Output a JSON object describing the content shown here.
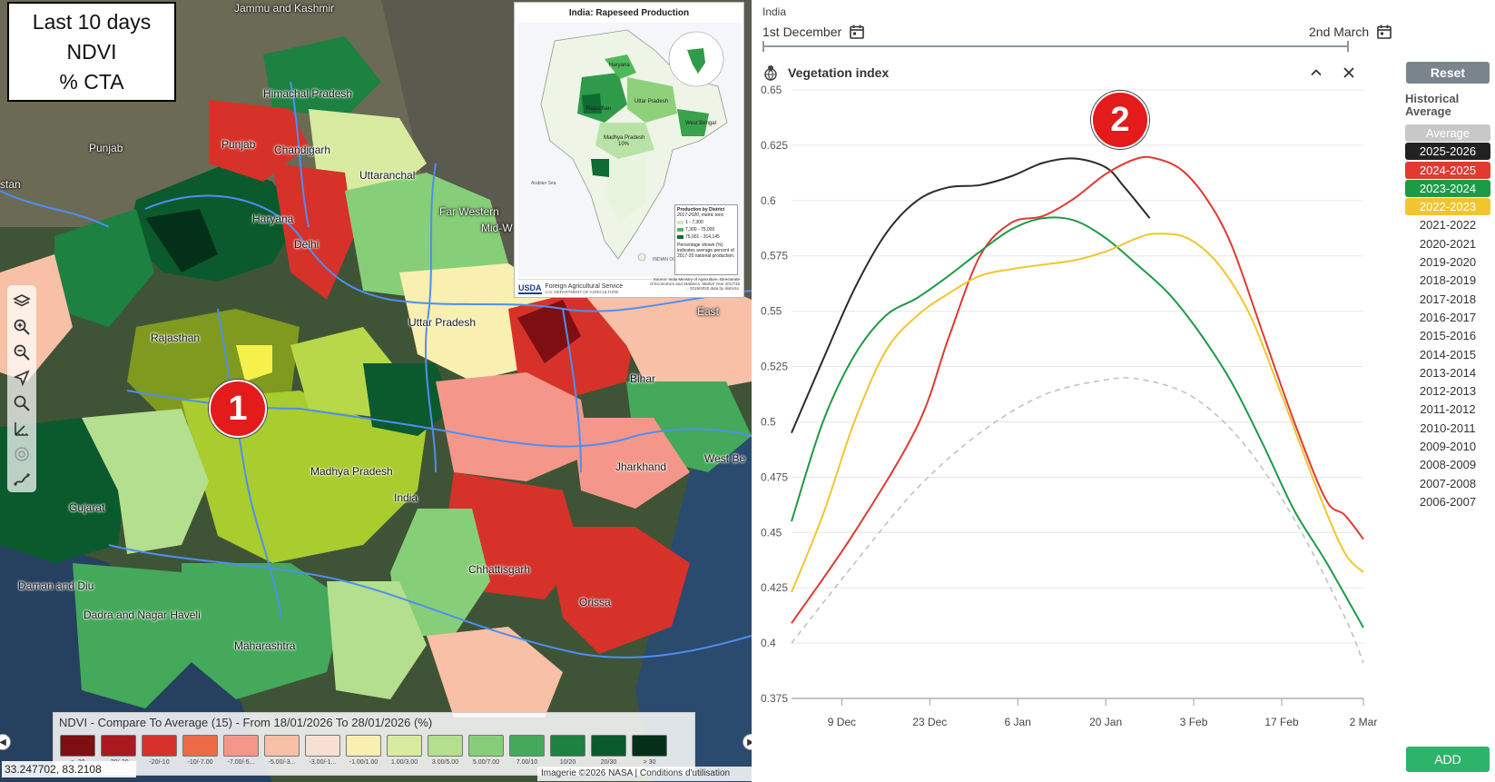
{
  "map": {
    "info_box": {
      "line1": "Last 10 days",
      "line2": "NDVI",
      "line3": "% CTA"
    },
    "labels": {
      "jammu": "Jammu and Kashmir",
      "himachal": "Himachal Pradesh",
      "punjab_region": "Punjab",
      "punjab_state": "Punjab",
      "chandigarh": "Chandigarh",
      "uttaranchal": "Uttaranchal",
      "haryana": "Haryana",
      "delhi": "Delhi",
      "far_western": "Far Western",
      "mid_w": "Mid-W",
      "rajasthan": "Rajasthan",
      "uttar_pradesh": "Uttar Pradesh",
      "east": "East",
      "bihar": "Bihar",
      "madhya_pradesh": "Madhya Pradesh",
      "india": "India",
      "jharkhand": "Jharkhand",
      "west_bengal": "West Be",
      "gujarat": "Gujarat",
      "chhattisgarh": "Chhattisgarh",
      "daman_diu": "Daman and Diu",
      "dadra": "Dadra and Nagar Haveli",
      "orissa": "Orissa",
      "maharashtra": "Maharashtra",
      "stan": "stan"
    },
    "usda_inset": {
      "title": "India: Rapeseed Production",
      "legend_title": "Production by District",
      "legend_sub": "2017-2020, metric tons",
      "legend_items": [
        "1 - 7,300",
        "7,300 - 75,000",
        "75,001 - 314,145"
      ],
      "legend_note": "Percentage shown (%) indicates average percent of 2017-20 national production.",
      "logo": "USDA",
      "agency": "Foreign Agricultural Service",
      "agency_sub": "U.S. DEPARTMENT OF AGRICULTURE",
      "source": "Source: India Ministry of Agriculture, Directorate of Economics and Statistics. Market Year 2017/18 - 2019/2020 data by districts.",
      "labels": {
        "rajasthan": "Rajasthan",
        "up": "Uttar Pradesh",
        "mp": "Madhya Pradesh",
        "mp_pct": "10%",
        "haryana": "Haryana",
        "west_bengal": "West Bengal",
        "arabian": "Arabian Sea",
        "indian_ocean": "INDIAN OCEAN"
      }
    },
    "badges": {
      "one": "1",
      "two": "2"
    },
    "ndvi_legend": {
      "title": "NDVI - Compare To Average (15) - From 18/01/2026 To 28/01/2026 (%)",
      "items": [
        {
          "label": "< -30",
          "color": "#7d0f12"
        },
        {
          "label": "-30/-20",
          "color": "#a81a1e"
        },
        {
          "label": "-20/-10",
          "color": "#d6322a"
        },
        {
          "label": "-10/-7.00",
          "color": "#ee6b48"
        },
        {
          "label": "-7.00/-5...",
          "color": "#f4978a"
        },
        {
          "label": "-5.00/-3...",
          "color": "#f7c0a7"
        },
        {
          "label": "-3.00/-1...",
          "color": "#f7dfd3"
        },
        {
          "label": "-1.00/1.00",
          "color": "#f8efb0"
        },
        {
          "label": "1.00/3.00",
          "color": "#d8eba0"
        },
        {
          "label": "3.00/5.00",
          "color": "#b4df8e"
        },
        {
          "label": "5.00/7.00",
          "color": "#86cf78"
        },
        {
          "label": "7.00/10",
          "color": "#44a95a"
        },
        {
          "label": "10/20",
          "color": "#1c8141"
        },
        {
          "label": "20/30",
          "color": "#0b5a2e"
        },
        {
          "label": "> 30",
          "color": "#04301a"
        }
      ]
    },
    "coords": "33.247702, 83.2108",
    "imagery_credit": "Imagerie ©2026 NASA | Conditions d'utilisation",
    "tools": [
      "layers-icon",
      "zoom-in-icon",
      "zoom-out-icon",
      "locate-icon",
      "search-icon",
      "measure-icon",
      "target-icon",
      "draw-icon"
    ]
  },
  "chart_panel": {
    "region": "India",
    "date_start": "1st December",
    "date_end": "2nd March",
    "title": "Vegetation index",
    "reset_label": "Reset",
    "historical_title": "Historical",
    "historical_avg": "Average",
    "add_label": "ADD",
    "years": [
      {
        "label": "Average",
        "color": "#c8c8c8",
        "active": true
      },
      {
        "label": "2025-2026",
        "color": "#222222",
        "active": true
      },
      {
        "label": "2024-2025",
        "color": "#e03a31",
        "active": true
      },
      {
        "label": "2023-2024",
        "color": "#1e9a47",
        "active": true
      },
      {
        "label": "2022-2023",
        "color": "#f2c530",
        "active": true
      },
      {
        "label": "2021-2022",
        "active": false
      },
      {
        "label": "2020-2021",
        "active": false
      },
      {
        "label": "2019-2020",
        "active": false
      },
      {
        "label": "2018-2019",
        "active": false
      },
      {
        "label": "2017-2018",
        "active": false
      },
      {
        "label": "2016-2017",
        "active": false
      },
      {
        "label": "2015-2016",
        "active": false
      },
      {
        "label": "2014-2015",
        "active": false
      },
      {
        "label": "2013-2014",
        "active": false
      },
      {
        "label": "2012-2013",
        "active": false
      },
      {
        "label": "2011-2012",
        "active": false
      },
      {
        "label": "2010-2011",
        "active": false
      },
      {
        "label": "2009-2010",
        "active": false
      },
      {
        "label": "2008-2009",
        "active": false
      },
      {
        "label": "2007-2008",
        "active": false
      },
      {
        "label": "2006-2007",
        "active": false
      }
    ]
  },
  "chart_data": {
    "type": "line",
    "title": "Vegetation index",
    "xlabel": "",
    "ylabel": "",
    "ylim": [
      0.375,
      0.65
    ],
    "xlim": [
      0,
      91
    ],
    "x_ticks": [
      {
        "label": "9 Dec",
        "day": 8
      },
      {
        "label": "23 Dec",
        "day": 22
      },
      {
        "label": "6 Jan",
        "day": 36
      },
      {
        "label": "20 Jan",
        "day": 50
      },
      {
        "label": "3 Feb",
        "day": 64
      },
      {
        "label": "17 Feb",
        "day": 78
      },
      {
        "label": "2 Mar",
        "day": 91
      }
    ],
    "y_ticks": [
      0.375,
      0.4,
      0.425,
      0.45,
      0.475,
      0.5,
      0.525,
      0.55,
      0.575,
      0.6,
      0.625,
      0.65
    ],
    "series": [
      {
        "name": "Average",
        "color": "#c2c2c2",
        "dashed": true,
        "x": [
          0,
          10,
          20,
          30,
          40,
          50,
          56,
          64,
          72,
          80,
          88,
          91
        ],
        "y": [
          0.4,
          0.436,
          0.47,
          0.495,
          0.512,
          0.519,
          0.519,
          0.511,
          0.49,
          0.456,
          0.412,
          0.391
        ]
      },
      {
        "name": "2025-2026",
        "color": "#2b2b2b",
        "dashed": false,
        "x": [
          0,
          5,
          10,
          15,
          20,
          25,
          30,
          35,
          40,
          45,
          50,
          53,
          57
        ],
        "y": [
          0.495,
          0.528,
          0.56,
          0.585,
          0.6,
          0.606,
          0.607,
          0.611,
          0.617,
          0.619,
          0.615,
          0.606,
          0.592
        ]
      },
      {
        "name": "2024-2025",
        "color": "#e03a31",
        "dashed": false,
        "x": [
          0,
          10,
          20,
          25,
          30,
          35,
          40,
          45,
          50,
          55,
          58,
          62,
          66,
          70,
          75,
          80,
          85,
          88,
          91
        ],
        "y": [
          0.409,
          0.45,
          0.498,
          0.538,
          0.575,
          0.59,
          0.593,
          0.601,
          0.612,
          0.619,
          0.619,
          0.614,
          0.601,
          0.58,
          0.54,
          0.5,
          0.465,
          0.458,
          0.447
        ]
      },
      {
        "name": "2023-2024",
        "color": "#1e9a47",
        "dashed": false,
        "x": [
          0,
          5,
          10,
          15,
          20,
          25,
          30,
          35,
          40,
          45,
          50,
          55,
          60,
          65,
          70,
          75,
          80,
          85,
          91
        ],
        "y": [
          0.455,
          0.5,
          0.53,
          0.548,
          0.556,
          0.566,
          0.577,
          0.587,
          0.592,
          0.591,
          0.583,
          0.571,
          0.558,
          0.54,
          0.518,
          0.49,
          0.46,
          0.437,
          0.407
        ]
      },
      {
        "name": "2022-2023",
        "color": "#f2c530",
        "dashed": false,
        "x": [
          0,
          5,
          10,
          15,
          20,
          25,
          30,
          35,
          40,
          45,
          50,
          55,
          58,
          63,
          68,
          73,
          78,
          84,
          88,
          91
        ],
        "y": [
          0.423,
          0.458,
          0.5,
          0.532,
          0.548,
          0.558,
          0.566,
          0.569,
          0.571,
          0.573,
          0.577,
          0.583,
          0.585,
          0.583,
          0.571,
          0.548,
          0.512,
          0.467,
          0.441,
          0.432
        ]
      }
    ],
    "legend_position": "right",
    "grid": true
  }
}
